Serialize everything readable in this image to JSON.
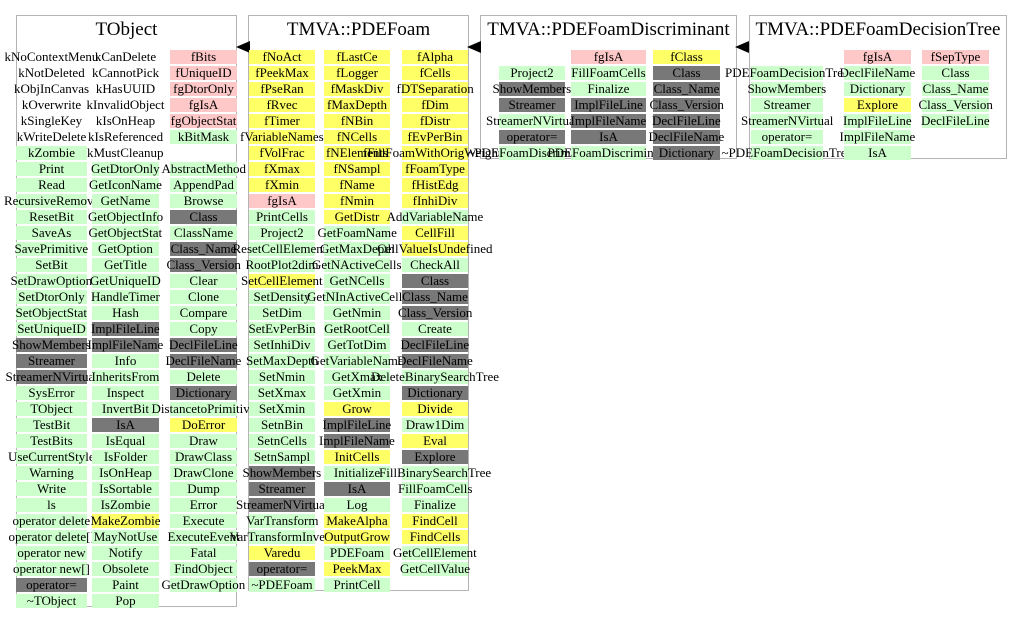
{
  "colors": {
    "method": "#ccffcc",
    "data_member": "#ffc8c8",
    "overridden": "#ffff66",
    "dictionary": "#787878",
    "border": "#b4b4b4",
    "arrow": "#000000"
  },
  "arrows": [
    {
      "from": "TMVA::PDEFoam",
      "to": "TObject",
      "icon": "inheritance-arrow-icon"
    },
    {
      "from": "TMVA::PDEFoamDiscriminant",
      "to": "TMVA::PDEFoam",
      "icon": "inheritance-arrow-icon"
    },
    {
      "from": "TMVA::PDEFoamDecisionTree",
      "to": "TMVA::PDEFoamDiscriminant",
      "icon": "inheritance-arrow-icon"
    }
  ],
  "classes": [
    {
      "title": "TObject",
      "columns": [
        [
          {
            "t": "kNoContextMenu",
            "c": "n"
          },
          {
            "t": "kNotDeleted",
            "c": "n"
          },
          {
            "t": "kObjInCanvas",
            "c": "n"
          },
          {
            "t": "kOverwrite",
            "c": "n"
          },
          {
            "t": "kSingleKey",
            "c": "n"
          },
          {
            "t": "kWriteDelete",
            "c": "n"
          },
          {
            "t": "kZombie",
            "c": "g"
          },
          {
            "t": "Print",
            "c": "g"
          },
          {
            "t": "Read",
            "c": "g"
          },
          {
            "t": "RecursiveRemove",
            "c": "g"
          },
          {
            "t": "ResetBit",
            "c": "g"
          },
          {
            "t": "SaveAs",
            "c": "g"
          },
          {
            "t": "SavePrimitive",
            "c": "g"
          },
          {
            "t": "SetBit",
            "c": "g"
          },
          {
            "t": "SetDrawOption",
            "c": "g"
          },
          {
            "t": "SetDtorOnly",
            "c": "g"
          },
          {
            "t": "SetObjectStat",
            "c": "g"
          },
          {
            "t": "SetUniqueID",
            "c": "g"
          },
          {
            "t": "ShowMembers",
            "c": "d"
          },
          {
            "t": "Streamer",
            "c": "d"
          },
          {
            "t": "StreamerNVirtual",
            "c": "d"
          },
          {
            "t": "SysError",
            "c": "g"
          },
          {
            "t": "TObject",
            "c": "g"
          },
          {
            "t": "TestBit",
            "c": "g"
          },
          {
            "t": "TestBits",
            "c": "g"
          },
          {
            "t": "UseCurrentStyle",
            "c": "g"
          },
          {
            "t": "Warning",
            "c": "g"
          },
          {
            "t": "Write",
            "c": "g"
          },
          {
            "t": "ls",
            "c": "g"
          },
          {
            "t": "operator delete",
            "c": "g"
          },
          {
            "t": "operator delete[]",
            "c": "g"
          },
          {
            "t": "operator new",
            "c": "g"
          },
          {
            "t": "operator new[]",
            "c": "g"
          },
          {
            "t": "operator=",
            "c": "d"
          },
          {
            "t": "~TObject",
            "c": "g"
          }
        ],
        [
          {
            "t": "kCanDelete",
            "c": "n"
          },
          {
            "t": "kCannotPick",
            "c": "n"
          },
          {
            "t": "kHasUUID",
            "c": "n"
          },
          {
            "t": "kInvalidObject",
            "c": "n"
          },
          {
            "t": "kIsOnHeap",
            "c": "n"
          },
          {
            "t": "kIsReferenced",
            "c": "n"
          },
          {
            "t": "kMustCleanup",
            "c": "n"
          },
          {
            "t": "GetDtorOnly",
            "c": "g"
          },
          {
            "t": "GetIconName",
            "c": "g"
          },
          {
            "t": "GetName",
            "c": "g"
          },
          {
            "t": "GetObjectInfo",
            "c": "g"
          },
          {
            "t": "GetObjectStat",
            "c": "g"
          },
          {
            "t": "GetOption",
            "c": "g"
          },
          {
            "t": "GetTitle",
            "c": "g"
          },
          {
            "t": "GetUniqueID",
            "c": "g"
          },
          {
            "t": "HandleTimer",
            "c": "g"
          },
          {
            "t": "Hash",
            "c": "g"
          },
          {
            "t": "ImplFileLine",
            "c": "d"
          },
          {
            "t": "ImplFileName",
            "c": "d"
          },
          {
            "t": "Info",
            "c": "g"
          },
          {
            "t": "InheritsFrom",
            "c": "g"
          },
          {
            "t": "Inspect",
            "c": "g"
          },
          {
            "t": "InvertBit",
            "c": "g"
          },
          {
            "t": "IsA",
            "c": "d"
          },
          {
            "t": "IsEqual",
            "c": "g"
          },
          {
            "t": "IsFolder",
            "c": "g"
          },
          {
            "t": "IsOnHeap",
            "c": "g"
          },
          {
            "t": "IsSortable",
            "c": "g"
          },
          {
            "t": "IsZombie",
            "c": "g"
          },
          {
            "t": "MakeZombie",
            "c": "y"
          },
          {
            "t": "MayNotUse",
            "c": "g"
          },
          {
            "t": "Notify",
            "c": "g"
          },
          {
            "t": "Obsolete",
            "c": "g"
          },
          {
            "t": "Paint",
            "c": "g"
          },
          {
            "t": "Pop",
            "c": "g"
          }
        ],
        [
          {
            "t": "fBits",
            "c": "p"
          },
          {
            "t": "fUniqueID",
            "c": "p"
          },
          {
            "t": "fgDtorOnly",
            "c": "p"
          },
          {
            "t": "fgIsA",
            "c": "p"
          },
          {
            "t": "fgObjectStat",
            "c": "p"
          },
          {
            "t": "kBitMask",
            "c": "g"
          },
          {
            "t": "",
            "c": "n"
          },
          {
            "t": "AbstractMethod",
            "c": "g"
          },
          {
            "t": "AppendPad",
            "c": "g"
          },
          {
            "t": "Browse",
            "c": "g"
          },
          {
            "t": "Class",
            "c": "d"
          },
          {
            "t": "ClassName",
            "c": "g"
          },
          {
            "t": "Class_Name",
            "c": "d"
          },
          {
            "t": "Class_Version",
            "c": "d"
          },
          {
            "t": "Clear",
            "c": "g"
          },
          {
            "t": "Clone",
            "c": "g"
          },
          {
            "t": "Compare",
            "c": "g"
          },
          {
            "t": "Copy",
            "c": "g"
          },
          {
            "t": "DeclFileLine",
            "c": "d"
          },
          {
            "t": "DeclFileName",
            "c": "d"
          },
          {
            "t": "Delete",
            "c": "g"
          },
          {
            "t": "Dictionary",
            "c": "d"
          },
          {
            "t": "DistancetoPrimitive",
            "c": "g"
          },
          {
            "t": "DoError",
            "c": "y"
          },
          {
            "t": "Draw",
            "c": "g"
          },
          {
            "t": "DrawClass",
            "c": "g"
          },
          {
            "t": "DrawClone",
            "c": "g"
          },
          {
            "t": "Dump",
            "c": "g"
          },
          {
            "t": "Error",
            "c": "g"
          },
          {
            "t": "Execute",
            "c": "g"
          },
          {
            "t": "ExecuteEvent",
            "c": "g"
          },
          {
            "t": "Fatal",
            "c": "g"
          },
          {
            "t": "FindObject",
            "c": "g"
          },
          {
            "t": "GetDrawOption",
            "c": "g"
          }
        ]
      ]
    },
    {
      "title": "TMVA::PDEFoam",
      "columns": [
        [
          {
            "t": "fNoAct",
            "c": "y"
          },
          {
            "t": "fPeekMax",
            "c": "y"
          },
          {
            "t": "fPseRan",
            "c": "y"
          },
          {
            "t": "fRvec",
            "c": "y"
          },
          {
            "t": "fTimer",
            "c": "y"
          },
          {
            "t": "fVariableNames",
            "c": "y"
          },
          {
            "t": "fVolFrac",
            "c": "y"
          },
          {
            "t": "fXmax",
            "c": "y"
          },
          {
            "t": "fXmin",
            "c": "y"
          },
          {
            "t": "fgIsA",
            "c": "p"
          },
          {
            "t": "PrintCells",
            "c": "g"
          },
          {
            "t": "Project2",
            "c": "g"
          },
          {
            "t": "ResetCellElements",
            "c": "g"
          },
          {
            "t": "RootPlot2dim",
            "c": "g"
          },
          {
            "t": "SetCellElement",
            "c": "y"
          },
          {
            "t": "SetDensity",
            "c": "g"
          },
          {
            "t": "SetDim",
            "c": "g"
          },
          {
            "t": "SetEvPerBin",
            "c": "g"
          },
          {
            "t": "SetInhiDiv",
            "c": "g"
          },
          {
            "t": "SetMaxDepth",
            "c": "g"
          },
          {
            "t": "SetNmin",
            "c": "g"
          },
          {
            "t": "SetXmax",
            "c": "g"
          },
          {
            "t": "SetXmin",
            "c": "g"
          },
          {
            "t": "SetnBin",
            "c": "g"
          },
          {
            "t": "SetnCells",
            "c": "g"
          },
          {
            "t": "SetnSampl",
            "c": "g"
          },
          {
            "t": "ShowMembers",
            "c": "d"
          },
          {
            "t": "Streamer",
            "c": "d"
          },
          {
            "t": "StreamerNVirtual",
            "c": "d"
          },
          {
            "t": "VarTransform",
            "c": "g"
          },
          {
            "t": "VarTransformInvers",
            "c": "g"
          },
          {
            "t": "Varedu",
            "c": "y"
          },
          {
            "t": "operator=",
            "c": "d"
          },
          {
            "t": "~PDEFoam",
            "c": "g"
          }
        ],
        [
          {
            "t": "fLastCe",
            "c": "y"
          },
          {
            "t": "fLogger",
            "c": "y"
          },
          {
            "t": "fMaskDiv",
            "c": "y"
          },
          {
            "t": "fMaxDepth",
            "c": "y"
          },
          {
            "t": "fNBin",
            "c": "y"
          },
          {
            "t": "fNCells",
            "c": "y"
          },
          {
            "t": "fNElements",
            "c": "y"
          },
          {
            "t": "fNSampl",
            "c": "y"
          },
          {
            "t": "fName",
            "c": "y"
          },
          {
            "t": "fNmin",
            "c": "y"
          },
          {
            "t": "GetDistr",
            "c": "y"
          },
          {
            "t": "GetFoamName",
            "c": "g"
          },
          {
            "t": "GetMaxDepth",
            "c": "g"
          },
          {
            "t": "GetNActiveCells",
            "c": "g"
          },
          {
            "t": "GetNCells",
            "c": "g"
          },
          {
            "t": "GetNInActiveCells",
            "c": "g"
          },
          {
            "t": "GetNmin",
            "c": "g"
          },
          {
            "t": "GetRootCell",
            "c": "g"
          },
          {
            "t": "GetTotDim",
            "c": "g"
          },
          {
            "t": "GetVariableName",
            "c": "g"
          },
          {
            "t": "GetXmax",
            "c": "g"
          },
          {
            "t": "GetXmin",
            "c": "g"
          },
          {
            "t": "Grow",
            "c": "y"
          },
          {
            "t": "ImplFileLine",
            "c": "d"
          },
          {
            "t": "ImplFileName",
            "c": "d"
          },
          {
            "t": "InitCells",
            "c": "y"
          },
          {
            "t": "Initialize",
            "c": "g"
          },
          {
            "t": "IsA",
            "c": "d"
          },
          {
            "t": "Log",
            "c": "g"
          },
          {
            "t": "MakeAlpha",
            "c": "y"
          },
          {
            "t": "OutputGrow",
            "c": "y"
          },
          {
            "t": "PDEFoam",
            "c": "g"
          },
          {
            "t": "PeekMax",
            "c": "y"
          },
          {
            "t": "PrintCell",
            "c": "g"
          }
        ],
        [
          {
            "t": "fAlpha",
            "c": "y"
          },
          {
            "t": "fCells",
            "c": "y"
          },
          {
            "t": "fDTSeparation",
            "c": "y"
          },
          {
            "t": "fDim",
            "c": "y"
          },
          {
            "t": "fDistr",
            "c": "y"
          },
          {
            "t": "fEvPerBin",
            "c": "y"
          },
          {
            "t": "fFillFoamWithOrigWeights",
            "c": "y"
          },
          {
            "t": "fFoamType",
            "c": "y"
          },
          {
            "t": "fHistEdg",
            "c": "y"
          },
          {
            "t": "fInhiDiv",
            "c": "y"
          },
          {
            "t": "AddVariableName",
            "c": "g"
          },
          {
            "t": "CellFill",
            "c": "y"
          },
          {
            "t": "CellValueIsUndefined",
            "c": "y"
          },
          {
            "t": "CheckAll",
            "c": "g"
          },
          {
            "t": "Class",
            "c": "d"
          },
          {
            "t": "Class_Name",
            "c": "d"
          },
          {
            "t": "Class_Version",
            "c": "d"
          },
          {
            "t": "Create",
            "c": "g"
          },
          {
            "t": "DeclFileLine",
            "c": "d"
          },
          {
            "t": "DeclFileName",
            "c": "d"
          },
          {
            "t": "DeleteBinarySearchTree",
            "c": "g"
          },
          {
            "t": "Dictionary",
            "c": "d"
          },
          {
            "t": "Divide",
            "c": "y"
          },
          {
            "t": "Draw1Dim",
            "c": "g"
          },
          {
            "t": "Eval",
            "c": "y"
          },
          {
            "t": "Explore",
            "c": "d"
          },
          {
            "t": "FillBinarySearchTree",
            "c": "g"
          },
          {
            "t": "FillFoamCells",
            "c": "g"
          },
          {
            "t": "Finalize",
            "c": "g"
          },
          {
            "t": "FindCell",
            "c": "y"
          },
          {
            "t": "FindCells",
            "c": "y"
          },
          {
            "t": "GetCellElement",
            "c": "g"
          },
          {
            "t": "GetCellValue",
            "c": "g"
          }
        ]
      ]
    },
    {
      "title": "TMVA::PDEFoamDiscriminant",
      "columns": [
        [
          {
            "t": "",
            "c": "n"
          },
          {
            "t": "Project2",
            "c": "g"
          },
          {
            "t": "ShowMembers",
            "c": "d"
          },
          {
            "t": "Streamer",
            "c": "d"
          },
          {
            "t": "StreamerNVirtual",
            "c": "g"
          },
          {
            "t": "operator=",
            "c": "d"
          },
          {
            "t": "~PDEFoamDiscriminant",
            "c": "g"
          }
        ],
        [
          {
            "t": "fgIsA",
            "c": "p"
          },
          {
            "t": "FillFoamCells",
            "c": "g"
          },
          {
            "t": "Finalize",
            "c": "g"
          },
          {
            "t": "ImplFileLine",
            "c": "d"
          },
          {
            "t": "ImplFileName",
            "c": "d"
          },
          {
            "t": "IsA",
            "c": "d"
          },
          {
            "t": "PDEFoamDiscriminant",
            "c": "g"
          }
        ],
        [
          {
            "t": "fClass",
            "c": "y"
          },
          {
            "t": "Class",
            "c": "d"
          },
          {
            "t": "Class_Name",
            "c": "d"
          },
          {
            "t": "Class_Version",
            "c": "d"
          },
          {
            "t": "DeclFileLine",
            "c": "d"
          },
          {
            "t": "DeclFileName",
            "c": "d"
          },
          {
            "t": "Dictionary",
            "c": "d"
          }
        ]
      ]
    },
    {
      "title": "TMVA::PDEFoamDecisionTree",
      "columns": [
        [
          {
            "t": "",
            "c": "n"
          },
          {
            "t": "PDEFoamDecisionTree",
            "c": "g"
          },
          {
            "t": "ShowMembers",
            "c": "g"
          },
          {
            "t": "Streamer",
            "c": "g"
          },
          {
            "t": "StreamerNVirtual",
            "c": "g"
          },
          {
            "t": "operator=",
            "c": "g"
          },
          {
            "t": "~PDEFoamDecisionTree",
            "c": "g"
          }
        ],
        [
          {
            "t": "fgIsA",
            "c": "p"
          },
          {
            "t": "DeclFileName",
            "c": "g"
          },
          {
            "t": "Dictionary",
            "c": "g"
          },
          {
            "t": "Explore",
            "c": "y"
          },
          {
            "t": "ImplFileLine",
            "c": "g"
          },
          {
            "t": "ImplFileName",
            "c": "g"
          },
          {
            "t": "IsA",
            "c": "g"
          }
        ],
        [
          {
            "t": "fSepType",
            "c": "p"
          },
          {
            "t": "Class",
            "c": "g"
          },
          {
            "t": "Class_Name",
            "c": "g"
          },
          {
            "t": "Class_Version",
            "c": "g"
          },
          {
            "t": "DeclFileLine",
            "c": "g"
          }
        ]
      ]
    }
  ]
}
